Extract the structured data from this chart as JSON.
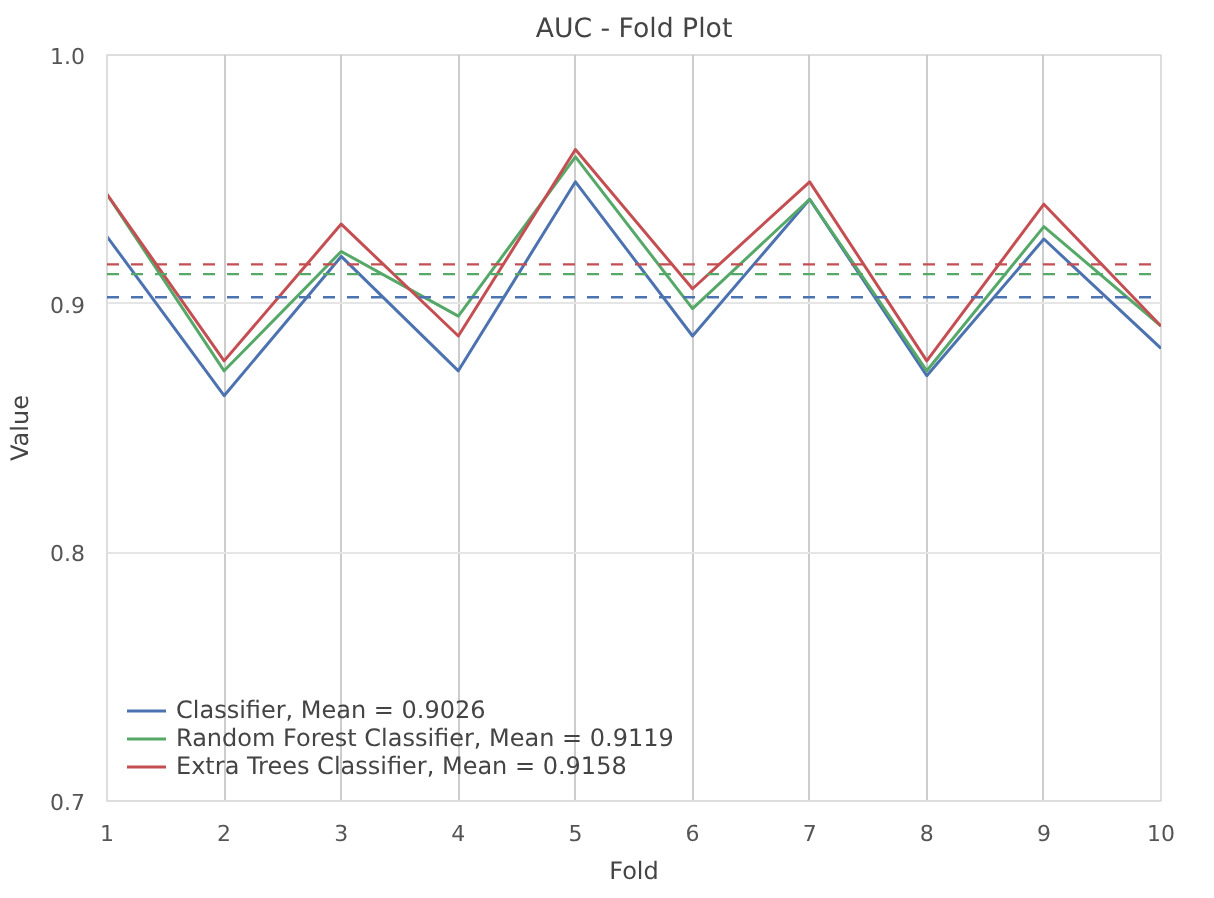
{
  "chart_data": {
    "type": "line",
    "title": "AUC - Fold Plot",
    "xlabel": "Fold",
    "ylabel": "Value",
    "x": [
      1,
      2,
      3,
      4,
      5,
      6,
      7,
      8,
      9,
      10
    ],
    "series": [
      {
        "name": "Classifier, Mean = 0.9026",
        "color": "#4c72b0",
        "values": [
          0.927,
          0.863,
          0.919,
          0.873,
          0.949,
          0.887,
          0.942,
          0.871,
          0.926,
          0.882
        ]
      },
      {
        "name": "Random Forest Classifier, Mean = 0.9119",
        "color": "#55a868",
        "values": [
          0.944,
          0.873,
          0.921,
          0.895,
          0.959,
          0.898,
          0.942,
          0.873,
          0.931,
          0.891
        ]
      },
      {
        "name": "Extra Trees Classifier, Mean = 0.9158",
        "color": "#c44e52",
        "values": [
          0.944,
          0.877,
          0.932,
          0.887,
          0.962,
          0.906,
          0.949,
          0.877,
          0.94,
          0.891
        ]
      }
    ],
    "ref_lines": [
      {
        "axis": "y",
        "value": 0.9026,
        "color": "#4c72b0",
        "line_style": "dashed"
      },
      {
        "axis": "y",
        "value": 0.9119,
        "color": "#55a868",
        "line_style": "dashed"
      },
      {
        "axis": "y",
        "value": 0.9158,
        "color": "#c44e52",
        "line_style": "dashed"
      }
    ],
    "xlim": [
      1,
      10
    ],
    "ylim": [
      0.7,
      1.0
    ],
    "xticks": [
      1,
      2,
      3,
      4,
      5,
      6,
      7,
      8,
      9,
      10
    ],
    "yticks": [
      0.7,
      0.8,
      0.9,
      {
        "value": 1.0,
        "label": "1.0"
      }
    ],
    "grid": true,
    "legend": "bottom left",
    "line_style": "solid",
    "marker": "none"
  }
}
